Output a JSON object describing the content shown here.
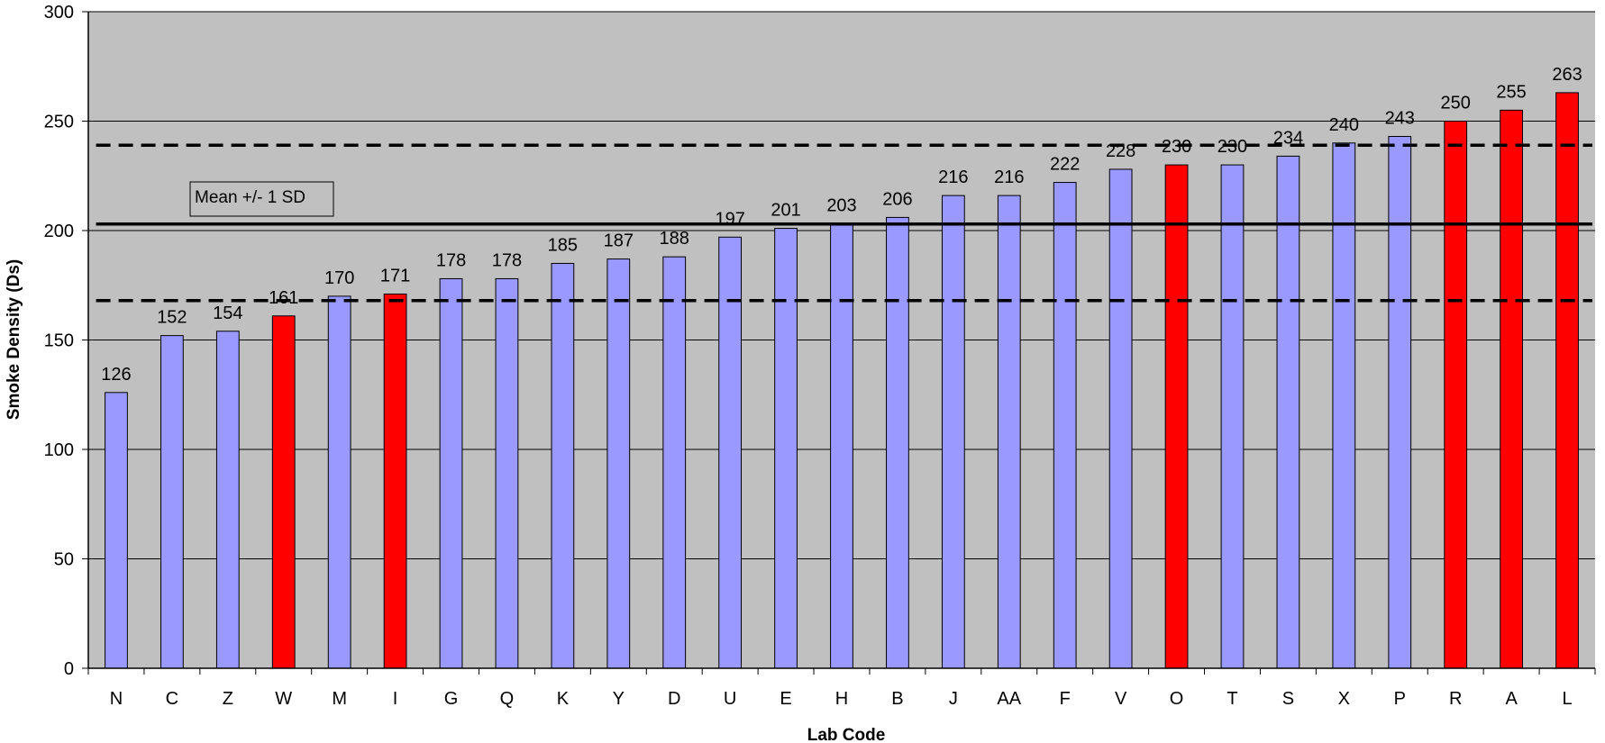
{
  "chart_data": {
    "type": "bar",
    "title": "",
    "xlabel": "Lab Code",
    "ylabel": "Smoke Density (Ds)",
    "ylim": [
      0,
      300
    ],
    "y_ticks": [
      0,
      50,
      100,
      150,
      200,
      250,
      300
    ],
    "grid": true,
    "categories": [
      "N",
      "C",
      "Z",
      "W",
      "M",
      "I",
      "G",
      "Q",
      "K",
      "Y",
      "D",
      "U",
      "E",
      "H",
      "B",
      "J",
      "AA",
      "F",
      "V",
      "O",
      "T",
      "S",
      "X",
      "P",
      "R",
      "A",
      "L"
    ],
    "values": [
      126,
      152,
      154,
      161,
      170,
      171,
      178,
      178,
      185,
      187,
      188,
      197,
      201,
      203,
      206,
      216,
      216,
      222,
      228,
      230,
      230,
      234,
      240,
      243,
      250,
      255,
      263
    ],
    "highlighted": [
      "W",
      "I",
      "O",
      "R",
      "A",
      "L"
    ],
    "reference_lines": {
      "mean": 203,
      "upper": 239,
      "lower": 168
    },
    "annotation": "Mean +/- 1 SD",
    "colors": {
      "bar": "#9999ff",
      "bar_highlight": "#ff0000",
      "plot_background": "#c0c0c0",
      "gridline": "#000000",
      "reference_line": "#000000"
    }
  }
}
